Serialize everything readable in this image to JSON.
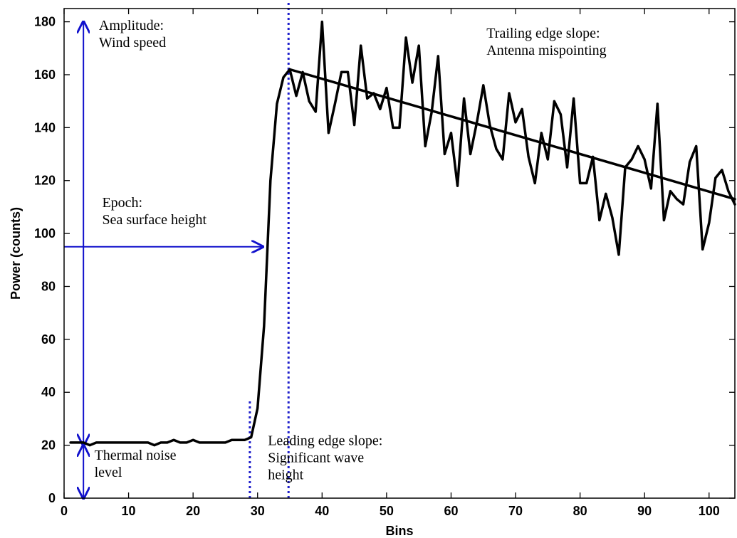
{
  "chart_data": {
    "type": "line",
    "xlabel": "Bins",
    "ylabel": "Power (counts)",
    "xlim": [
      0,
      104
    ],
    "ylim": [
      0,
      185
    ],
    "xticks": [
      0,
      10,
      20,
      30,
      40,
      50,
      60,
      70,
      80,
      90,
      100
    ],
    "yticks": [
      0,
      20,
      40,
      60,
      80,
      100,
      120,
      140,
      160,
      180
    ],
    "grid": false,
    "series": [
      {
        "role": "measured-waveform",
        "color": "#000000",
        "x": [
          1,
          2,
          3,
          4,
          5,
          6,
          7,
          8,
          9,
          10,
          11,
          12,
          13,
          14,
          15,
          16,
          17,
          18,
          19,
          20,
          21,
          22,
          23,
          24,
          25,
          26,
          27,
          28,
          29,
          30,
          31,
          32,
          33,
          34,
          35,
          36,
          37,
          38,
          39,
          40,
          41,
          42,
          43,
          44,
          45,
          46,
          47,
          48,
          49,
          50,
          51,
          52,
          53,
          54,
          55,
          56,
          57,
          58,
          59,
          60,
          61,
          62,
          63,
          64,
          65,
          66,
          67,
          68,
          69,
          70,
          71,
          72,
          73,
          74,
          75,
          76,
          77,
          78,
          79,
          80,
          81,
          82,
          83,
          84,
          85,
          86,
          87,
          88,
          89,
          90,
          91,
          92,
          93,
          94,
          95,
          96,
          97,
          98,
          99,
          100,
          101,
          102,
          103,
          104
        ],
        "y": [
          21,
          21,
          21,
          20,
          21,
          21,
          21,
          21,
          21,
          21,
          21,
          21,
          21,
          20,
          21,
          21,
          22,
          21,
          21,
          22,
          21,
          21,
          21,
          21,
          21,
          22,
          22,
          22,
          23,
          34,
          65,
          120,
          149,
          159,
          162,
          152,
          161,
          150,
          146,
          180,
          138,
          149,
          161,
          161,
          141,
          171,
          151,
          153,
          147,
          155,
          140,
          140,
          174,
          157,
          171,
          133,
          146,
          167,
          130,
          138,
          118,
          151,
          130,
          142,
          156,
          141,
          132,
          128,
          153,
          142,
          147,
          129,
          119,
          138,
          128,
          150,
          145,
          125,
          151,
          119,
          119,
          129,
          105,
          115,
          106,
          92,
          125,
          128,
          133,
          128,
          117,
          149,
          105,
          116,
          113,
          111,
          127,
          133,
          94,
          104,
          121,
          124,
          116,
          111
        ]
      },
      {
        "role": "trailing-edge-fit",
        "color": "#000000",
        "x": [
          35,
          104
        ],
        "y": [
          162,
          113
        ]
      }
    ],
    "reference_lines": [
      {
        "role": "leading-edge-start",
        "axis": "x",
        "value": 28.8,
        "y_range": [
          0,
          37
        ],
        "color": "#1f1fcc"
      },
      {
        "role": "leading-edge-end",
        "axis": "x",
        "value": 34.8,
        "y_range": [
          0,
          188
        ],
        "color": "#1f1fcc"
      }
    ],
    "arrows": [
      {
        "role": "amplitude-arrow",
        "x": [
          3,
          3
        ],
        "y": [
          20,
          180
        ],
        "color": "#1010cc"
      },
      {
        "role": "epoch-arrow",
        "x": [
          0,
          30.8
        ],
        "y": [
          95,
          95
        ],
        "color": "#1010cc"
      },
      {
        "role": "noise-arrow",
        "x": [
          3,
          3
        ],
        "y": [
          0,
          20
        ],
        "color": "#1010cc"
      }
    ],
    "annotations": [
      {
        "lines": [
          "Amplitude:",
          "Wind speed"
        ],
        "x": 5.4,
        "y": 177
      },
      {
        "lines": [
          "Trailing edge slope:",
          "Antenna mispointing"
        ],
        "x": 65.5,
        "y": 174
      },
      {
        "lines": [
          "Epoch:",
          "Sea surface height"
        ],
        "x": 5.9,
        "y": 110
      },
      {
        "lines": [
          "Thermal noise",
          "level"
        ],
        "x": 4.7,
        "y": 14.5
      },
      {
        "lines": [
          "Leading edge slope:",
          "Significant wave",
          "height"
        ],
        "x": 31.6,
        "y": 20
      }
    ]
  }
}
